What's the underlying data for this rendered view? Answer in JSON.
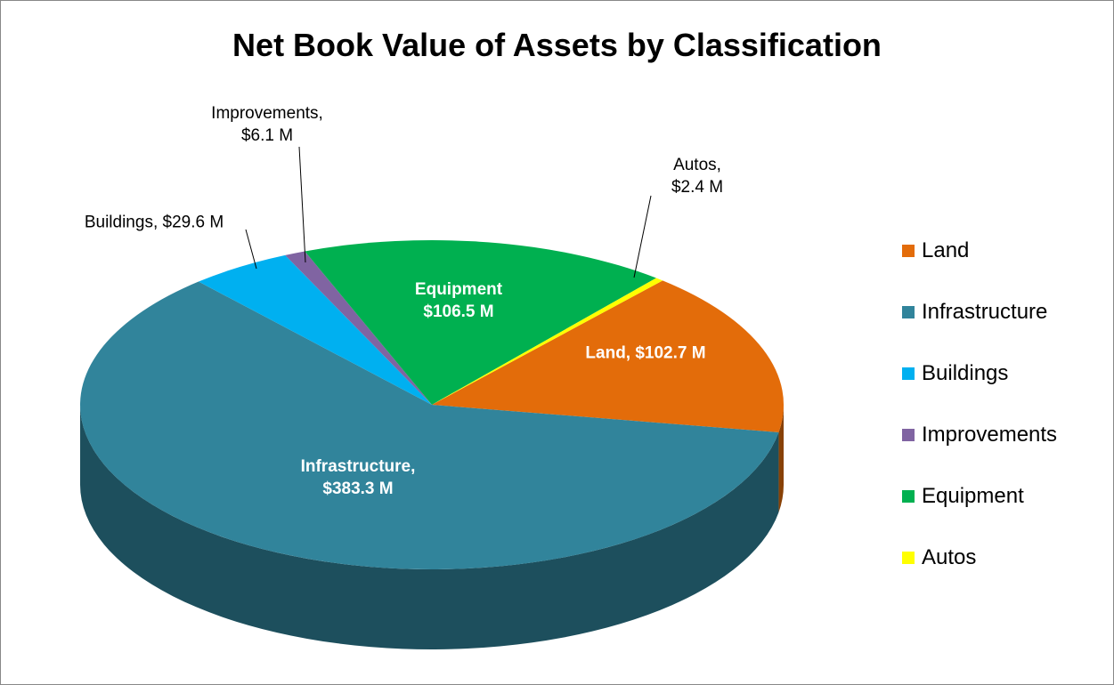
{
  "chart_data": {
    "type": "pie3d",
    "title": "Net Book Value of Assets by Classification",
    "categories": [
      "Land",
      "Infrastructure",
      "Buildings",
      "Improvements",
      "Equipment",
      "Autos"
    ],
    "values": [
      102.7,
      383.3,
      29.6,
      6.1,
      106.5,
      2.4
    ],
    "value_labels": [
      "Land, $102.7 M",
      "Infrastructure,\n$383.3 M",
      "Buildings, $29.6 M",
      "Improvements,\n$6.1 M",
      "Equipment\n$106.5 M",
      "Autos,\n$2.4 M"
    ],
    "colors": [
      "#e36c0a",
      "#31849b",
      "#00b0f0",
      "#8064a2",
      "#00b050",
      "#ffff00"
    ],
    "legend": "right"
  }
}
